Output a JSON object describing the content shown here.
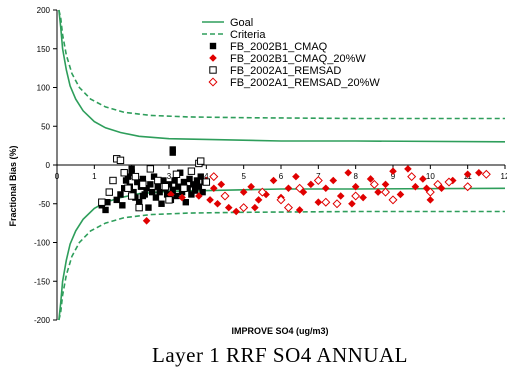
{
  "chart_data": {
    "type": "scatter",
    "xlabel": "IMPROVE SO4 (ug/m3)",
    "ylabel": "Fractional Bias (%)",
    "xlim": [
      0,
      12
    ],
    "ylim": [
      -200,
      200
    ],
    "x_ticks": [
      0,
      1,
      2,
      3,
      4,
      5,
      6,
      7,
      8,
      9,
      10,
      11,
      12
    ],
    "y_ticks": [
      200,
      150,
      100,
      50,
      0,
      -50,
      -100,
      -150,
      -200
    ],
    "caption": "Layer 1  RRF  SO4   ANNUAL",
    "colors": {
      "goal": "#2e9e5b",
      "criteria": "#2e9e5b",
      "cmaq": "#000000",
      "remsad": "#e00000"
    },
    "series": [
      {
        "name": "Goal",
        "kind": "line",
        "style": "solid",
        "points": [
          [
            0.05,
            200
          ],
          [
            0.1,
            178
          ],
          [
            0.15,
            150
          ],
          [
            0.25,
            123
          ],
          [
            0.35,
            102
          ],
          [
            0.5,
            85
          ],
          [
            0.7,
            70
          ],
          [
            1.0,
            56
          ],
          [
            1.3,
            48
          ],
          [
            1.7,
            42
          ],
          [
            2.2,
            37
          ],
          [
            3.0,
            34
          ],
          [
            4.0,
            33
          ],
          [
            6.0,
            31
          ],
          [
            8.0,
            31
          ],
          [
            12.0,
            30
          ]
        ]
      },
      {
        "name": "Goal",
        "kind": "line",
        "style": "solid",
        "points": [
          [
            0.05,
            -200
          ],
          [
            0.1,
            -178
          ],
          [
            0.15,
            -150
          ],
          [
            0.25,
            -123
          ],
          [
            0.35,
            -102
          ],
          [
            0.5,
            -85
          ],
          [
            0.7,
            -70
          ],
          [
            1.0,
            -56
          ],
          [
            1.3,
            -48
          ],
          [
            1.7,
            -42
          ],
          [
            2.2,
            -37
          ],
          [
            3.0,
            -34
          ],
          [
            4.0,
            -33
          ],
          [
            6.0,
            -31
          ],
          [
            8.0,
            -31
          ],
          [
            12.0,
            -30
          ]
        ]
      },
      {
        "name": "Criteria",
        "kind": "line",
        "style": "dashed",
        "points": [
          [
            0.05,
            200
          ],
          [
            0.1,
            190
          ],
          [
            0.15,
            168
          ],
          [
            0.25,
            142
          ],
          [
            0.4,
            118
          ],
          [
            0.6,
            100
          ],
          [
            0.9,
            85
          ],
          [
            1.3,
            75
          ],
          [
            1.8,
            68
          ],
          [
            2.5,
            64
          ],
          [
            3.5,
            62
          ],
          [
            5.0,
            61
          ],
          [
            8.0,
            60
          ],
          [
            12.0,
            60
          ]
        ]
      },
      {
        "name": "Criteria",
        "kind": "line",
        "style": "dashed",
        "points": [
          [
            0.05,
            -200
          ],
          [
            0.1,
            -190
          ],
          [
            0.15,
            -168
          ],
          [
            0.25,
            -142
          ],
          [
            0.4,
            -118
          ],
          [
            0.6,
            -100
          ],
          [
            0.9,
            -85
          ],
          [
            1.3,
            -75
          ],
          [
            1.8,
            -68
          ],
          [
            2.5,
            -64
          ],
          [
            3.5,
            -62
          ],
          [
            5.0,
            -61
          ],
          [
            8.0,
            -60
          ],
          [
            12.0,
            -60
          ]
        ]
      },
      {
        "name": "FB_2002B1_CMAQ",
        "kind": "points",
        "marker": "square-filled",
        "points": [
          [
            1.2,
            -52
          ],
          [
            1.3,
            -58
          ],
          [
            1.35,
            -48
          ],
          [
            1.6,
            -45
          ],
          [
            1.7,
            -38
          ],
          [
            1.75,
            -52
          ],
          [
            1.8,
            -30
          ],
          [
            1.85,
            -20
          ],
          [
            1.9,
            -15
          ],
          [
            1.95,
            -28
          ],
          [
            2.0,
            -10
          ],
          [
            2.05,
            -35
          ],
          [
            2.1,
            -42
          ],
          [
            2.15,
            -22
          ],
          [
            2.2,
            -48
          ],
          [
            2.25,
            -28
          ],
          [
            2.3,
            -18
          ],
          [
            2.35,
            -38
          ],
          [
            2.4,
            -30
          ],
          [
            2.45,
            -55
          ],
          [
            2.5,
            -25
          ],
          [
            2.55,
            -35
          ],
          [
            2.6,
            -15
          ],
          [
            2.65,
            -42
          ],
          [
            2.7,
            -28
          ],
          [
            2.75,
            -35
          ],
          [
            2.8,
            -50
          ],
          [
            2.85,
            -20
          ],
          [
            2.9,
            -30
          ],
          [
            2.95,
            -38
          ],
          [
            3.0,
            -25
          ],
          [
            3.05,
            -45
          ],
          [
            3.1,
            -32
          ],
          [
            3.15,
            -20
          ],
          [
            3.2,
            -40
          ],
          [
            3.25,
            -28
          ],
          [
            3.3,
            -10
          ],
          [
            3.35,
            -35
          ],
          [
            3.4,
            -22
          ],
          [
            3.45,
            -48
          ],
          [
            3.5,
            -30
          ],
          [
            3.55,
            -18
          ],
          [
            3.6,
            -38
          ],
          [
            3.65,
            -25
          ],
          [
            3.7,
            -33
          ],
          [
            3.75,
            -20
          ],
          [
            3.8,
            -28
          ],
          [
            3.85,
            -15
          ],
          [
            3.9,
            -35
          ],
          [
            3.95,
            -22
          ],
          [
            3.1,
            20
          ],
          [
            3.1,
            16
          ],
          [
            2.0,
            -5
          ],
          [
            2.3,
            -40
          ]
        ]
      },
      {
        "name": "FB_2002B1_CMAQ_20%W",
        "kind": "points",
        "marker": "diamond-filled",
        "points": [
          [
            2.4,
            -72
          ],
          [
            3.05,
            -38
          ],
          [
            3.35,
            -42
          ],
          [
            3.8,
            -40
          ],
          [
            4.0,
            -20
          ],
          [
            4.1,
            -45
          ],
          [
            4.2,
            -30
          ],
          [
            4.3,
            -50
          ],
          [
            4.4,
            -25
          ],
          [
            4.6,
            -55
          ],
          [
            4.8,
            -60
          ],
          [
            5.0,
            -35
          ],
          [
            5.2,
            -28
          ],
          [
            5.4,
            -45
          ],
          [
            5.6,
            -38
          ],
          [
            5.8,
            -20
          ],
          [
            6.0,
            -42
          ],
          [
            6.2,
            -30
          ],
          [
            6.4,
            -15
          ],
          [
            6.6,
            -35
          ],
          [
            6.8,
            -25
          ],
          [
            7.0,
            -48
          ],
          [
            7.2,
            -30
          ],
          [
            7.4,
            -20
          ],
          [
            7.6,
            -40
          ],
          [
            7.8,
            -10
          ],
          [
            8.0,
            -28
          ],
          [
            8.2,
            -42
          ],
          [
            8.4,
            -18
          ],
          [
            8.6,
            -35
          ],
          [
            8.8,
            -25
          ],
          [
            9.0,
            -8
          ],
          [
            9.2,
            -38
          ],
          [
            9.4,
            -5
          ],
          [
            9.6,
            -28
          ],
          [
            9.8,
            -18
          ],
          [
            10.0,
            -45
          ],
          [
            10.3,
            -30
          ],
          [
            10.6,
            -20
          ],
          [
            11.0,
            -12
          ],
          [
            11.3,
            -10
          ],
          [
            5.3,
            -55
          ],
          [
            6.5,
            -58
          ],
          [
            7.9,
            -50
          ],
          [
            9.9,
            -30
          ]
        ]
      },
      {
        "name": "FB_2002A1_REMSAD",
        "kind": "points",
        "marker": "square-open",
        "points": [
          [
            1.2,
            -48
          ],
          [
            1.4,
            -35
          ],
          [
            1.6,
            8
          ],
          [
            1.7,
            6
          ],
          [
            1.8,
            -10
          ],
          [
            1.9,
            -30
          ],
          [
            2.0,
            -40
          ],
          [
            2.1,
            -15
          ],
          [
            2.3,
            -25
          ],
          [
            2.5,
            -5
          ],
          [
            2.7,
            -20
          ],
          [
            2.9,
            -28
          ],
          [
            3.2,
            -12
          ],
          [
            3.4,
            -30
          ],
          [
            3.6,
            -8
          ],
          [
            3.8,
            2
          ],
          [
            3.85,
            5
          ],
          [
            4.0,
            -22
          ],
          [
            1.5,
            -20
          ],
          [
            2.2,
            -55
          ],
          [
            3.0,
            -45
          ]
        ]
      },
      {
        "name": "FB_2002A1_REMSAD_20%W",
        "kind": "points",
        "marker": "diamond-open",
        "points": [
          [
            4.2,
            -15
          ],
          [
            4.5,
            -40
          ],
          [
            5.0,
            -55
          ],
          [
            5.5,
            -35
          ],
          [
            6.0,
            -45
          ],
          [
            6.5,
            -30
          ],
          [
            7.0,
            -20
          ],
          [
            7.5,
            -50
          ],
          [
            8.0,
            -40
          ],
          [
            8.5,
            -25
          ],
          [
            9.0,
            -45
          ],
          [
            9.5,
            -15
          ],
          [
            10.0,
            -35
          ],
          [
            10.5,
            -22
          ],
          [
            11.0,
            -28
          ],
          [
            11.5,
            -12
          ],
          [
            6.2,
            -55
          ],
          [
            7.2,
            -48
          ],
          [
            8.8,
            -35
          ],
          [
            10.2,
            -25
          ]
        ]
      }
    ]
  }
}
